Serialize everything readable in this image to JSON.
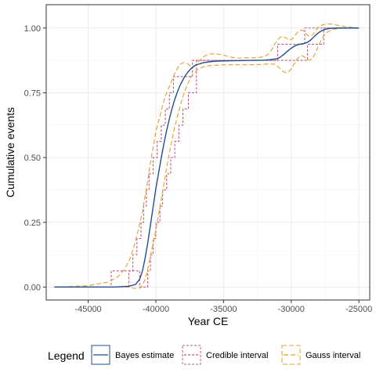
{
  "chart_data": {
    "type": "line",
    "xlabel": "Year CE",
    "ylabel": "Cumulative events",
    "xlim": [
      -48100,
      -24200
    ],
    "ylim": [
      -0.05,
      1.09
    ],
    "x_ticks": [
      -45000,
      -40000,
      -35000,
      -30000,
      -25000
    ],
    "x_tick_labels": [
      "-45000",
      "-40000",
      "-35000",
      "-30000",
      "-25000"
    ],
    "y_ticks": [
      0,
      0.25,
      0.5,
      0.75,
      1
    ],
    "y_tick_labels": [
      "0.00",
      "0.25",
      "0.50",
      "0.75",
      "1.00"
    ],
    "grid": true,
    "legend": {
      "title": "Legend",
      "position": "bottom",
      "entries": [
        "Bayes estimate",
        "Credible interval",
        "Gauss interval"
      ]
    },
    "series": [
      {
        "name": "Bayes estimate",
        "color": "#1f4e8c",
        "line": "solid",
        "x": [
          -47500,
          -45000,
          -43000,
          -42000,
          -41500,
          -41200,
          -41000,
          -40800,
          -40600,
          -40400,
          -40200,
          -40000,
          -39800,
          -39600,
          -39400,
          -39200,
          -39000,
          -38800,
          -38600,
          -38400,
          -38200,
          -38000,
          -37800,
          -37600,
          -37400,
          -37200,
          -37000,
          -36500,
          -36000,
          -35500,
          -35000,
          -34000,
          -33000,
          -32000,
          -31500,
          -31000,
          -30800,
          -30600,
          -30400,
          -30200,
          -30000,
          -29800,
          -29600,
          -29400,
          -29200,
          -29000,
          -28800,
          -28600,
          -28400,
          -28200,
          -28000,
          -27800,
          -27600,
          -27400,
          -27200,
          -27000,
          -26500,
          -26000,
          -25500,
          -25000
        ],
        "y": [
          0.0,
          0.0,
          0.0,
          0.003,
          0.01,
          0.03,
          0.06,
          0.11,
          0.17,
          0.24,
          0.31,
          0.38,
          0.44,
          0.5,
          0.555,
          0.605,
          0.65,
          0.69,
          0.725,
          0.755,
          0.78,
          0.8,
          0.818,
          0.832,
          0.843,
          0.852,
          0.858,
          0.866,
          0.87,
          0.872,
          0.873,
          0.874,
          0.875,
          0.876,
          0.878,
          0.882,
          0.888,
          0.896,
          0.905,
          0.914,
          0.922,
          0.929,
          0.934,
          0.937,
          0.939,
          0.941,
          0.945,
          0.952,
          0.962,
          0.972,
          0.981,
          0.988,
          0.993,
          0.996,
          0.998,
          0.999,
          1.0,
          1.0,
          1.0,
          1.0
        ]
      },
      {
        "name": "Credible interval",
        "color": "#c05a84",
        "line": "dashed",
        "bounds": [
          {
            "x": [
              -47500,
              -42000,
              -42000,
              -41700,
              -41700,
              -41400,
              -41400,
              -41100,
              -41100,
              -40900,
              -40900,
              -40700,
              -40700,
              -40500,
              -40500,
              -40200,
              -40200,
              -39900,
              -39900,
              -39600,
              -39600,
              -39300,
              -39300,
              -39000,
              -39000,
              -38700,
              -38700,
              -38400,
              -38400,
              -37800,
              -37800,
              -37300,
              -37300,
              -35000,
              -35000,
              -31000,
              -31000,
              -29000,
              -29000,
              -28800,
              -28800,
              -25000
            ],
            "y": [
              0.0,
              0.0,
              0.0625,
              0.0625,
              0.125,
              0.125,
              0.1875,
              0.1875,
              0.25,
              0.25,
              0.3125,
              0.3125,
              0.375,
              0.375,
              0.4375,
              0.4375,
              0.5,
              0.5,
              0.5625,
              0.5625,
              0.625,
              0.625,
              0.6875,
              0.6875,
              0.75,
              0.75,
              0.8125,
              0.8125,
              0.8125,
              0.8125,
              0.8125,
              0.8125,
              0.875,
              0.875,
              0.875,
              0.875,
              0.9375,
              0.9375,
              1.0,
              1.0,
              1.0,
              1.0
            ]
          },
          {
            "x": [
              -47500,
              -43300,
              -43300,
              -41200,
              -41200,
              -40600,
              -40600,
              -40400,
              -40400,
              -40200,
              -40200,
              -40000,
              -40000,
              -39700,
              -39700,
              -39500,
              -39500,
              -39200,
              -39200,
              -38900,
              -38900,
              -38600,
              -38600,
              -38300,
              -38300,
              -38000,
              -38000,
              -37600,
              -37600,
              -37000,
              -37000,
              -30400,
              -30400,
              -30000,
              -30000,
              -28800,
              -28800,
              -27600,
              -27600,
              -25000
            ],
            "y": [
              0.0,
              0.0,
              0.0625,
              0.0625,
              0.0,
              0.0,
              0.0625,
              0.0625,
              0.125,
              0.125,
              0.1875,
              0.1875,
              0.25,
              0.25,
              0.3125,
              0.3125,
              0.375,
              0.375,
              0.4375,
              0.4375,
              0.5,
              0.5,
              0.5625,
              0.5625,
              0.625,
              0.625,
              0.6875,
              0.6875,
              0.75,
              0.75,
              0.875,
              0.875,
              0.875,
              0.875,
              0.875,
              0.875,
              0.9375,
              0.9375,
              1.0,
              1.0
            ]
          }
        ]
      },
      {
        "name": "Gauss interval",
        "color": "#e0a030",
        "line": "dashed",
        "bounds": [
          {
            "x": [
              -47500,
              -45000,
              -43500,
              -42800,
              -42300,
              -41900,
              -41600,
              -41300,
              -41000,
              -40800,
              -40600,
              -40400,
              -40200,
              -40000,
              -39800,
              -39600,
              -39400,
              -39200,
              -39000,
              -38800,
              -38600,
              -38400,
              -38200,
              -38000,
              -37800,
              -37600,
              -37400,
              -37200,
              -37000,
              -36700,
              -36400,
              -36000,
              -35500,
              -35000,
              -34500,
              -34000,
              -33500,
              -33000,
              -32500,
              -32000,
              -31800,
              -31600,
              -31400,
              -31200,
              -31000,
              -30800,
              -30600,
              -30400,
              -30200,
              -30000,
              -29800,
              -29600,
              -29400,
              -29200,
              -29000,
              -28800,
              -28600,
              -28400,
              -28200,
              -28000,
              -27700,
              -27400,
              -27000,
              -26500,
              -26000,
              -25000
            ],
            "y": [
              0.0,
              0.005,
              0.02,
              0.04,
              0.07,
              0.11,
              0.16,
              0.22,
              0.29,
              0.35,
              0.41,
              0.48,
              0.54,
              0.6,
              0.64,
              0.68,
              0.72,
              0.75,
              0.775,
              0.8,
              0.825,
              0.845,
              0.86,
              0.866,
              0.866,
              0.86,
              0.852,
              0.852,
              0.862,
              0.878,
              0.892,
              0.9,
              0.9,
              0.895,
              0.888,
              0.884,
              0.885,
              0.885,
              0.885,
              0.89,
              0.895,
              0.905,
              0.92,
              0.94,
              0.955,
              0.965,
              0.968,
              0.962,
              0.955,
              0.955,
              0.965,
              0.98,
              0.99,
              0.992,
              0.985,
              0.972,
              0.968,
              0.975,
              0.99,
              1.003,
              1.012,
              1.016,
              1.015,
              1.01,
              1.005,
              1.0
            ]
          },
          {
            "x": [
              -47500,
              -46000,
              -45000,
              -44000,
              -43500,
              -43000,
              -42500,
              -42000,
              -41600,
              -41200,
              -41000,
              -40800,
              -40600,
              -40400,
              -40200,
              -40000,
              -39800,
              -39600,
              -39400,
              -39200,
              -39000,
              -38800,
              -38600,
              -38400,
              -38200,
              -38000,
              -37800,
              -37600,
              -37400,
              -37200,
              -37000,
              -36800,
              -36500,
              -36000,
              -35000,
              -34000,
              -33000,
              -32000,
              -31600,
              -31200,
              -31000,
              -30800,
              -30600,
              -30400,
              -30200,
              -30000,
              -29800,
              -29600,
              -29400,
              -29200,
              -29000,
              -28800,
              -28600,
              -28400,
              -28200,
              -28000,
              -27800,
              -27600,
              -27400,
              -27000,
              -26500,
              -26000,
              -25000
            ],
            "y": [
              0.0,
              0.0,
              0.0,
              0.0,
              0.0,
              0.0,
              0.0,
              0.0,
              -0.005,
              -0.005,
              0.005,
              0.03,
              0.07,
              0.12,
              0.17,
              0.22,
              0.28,
              0.34,
              0.4,
              0.46,
              0.52,
              0.57,
              0.62,
              0.66,
              0.7,
              0.735,
              0.765,
              0.79,
              0.81,
              0.825,
              0.836,
              0.843,
              0.85,
              0.855,
              0.858,
              0.858,
              0.858,
              0.86,
              0.862,
              0.86,
              0.852,
              0.842,
              0.832,
              0.828,
              0.83,
              0.842,
              0.86,
              0.878,
              0.89,
              0.893,
              0.887,
              0.878,
              0.876,
              0.885,
              0.905,
              0.93,
              0.952,
              0.97,
              0.982,
              0.994,
              0.998,
              1.0,
              1.0
            ]
          }
        ]
      }
    ]
  }
}
